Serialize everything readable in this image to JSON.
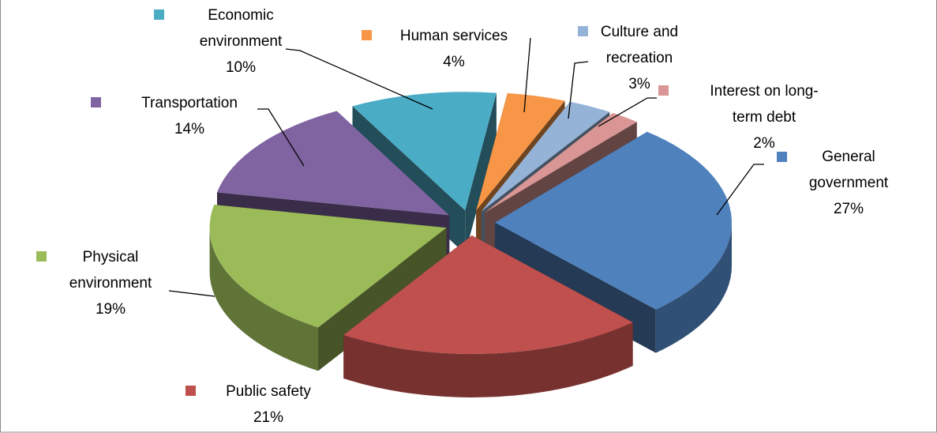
{
  "chart_data": {
    "type": "pie",
    "categories": [
      "General government",
      "Public safety",
      "Physical environment",
      "Transportation",
      "Economic environment",
      "Human services",
      "Culture and recreation",
      "Interest on long-term debt"
    ],
    "values": [
      27,
      21,
      19,
      14,
      10,
      4,
      3,
      2
    ],
    "value_labels": [
      "27%",
      "21%",
      "19%",
      "14%",
      "10%",
      "4%",
      "3%",
      "2%"
    ],
    "colors": [
      "#4f81bd",
      "#c0504d",
      "#9bbb59",
      "#8064a2",
      "#4bacc6",
      "#f79646",
      "#95b3d7",
      "#d99694"
    ]
  }
}
